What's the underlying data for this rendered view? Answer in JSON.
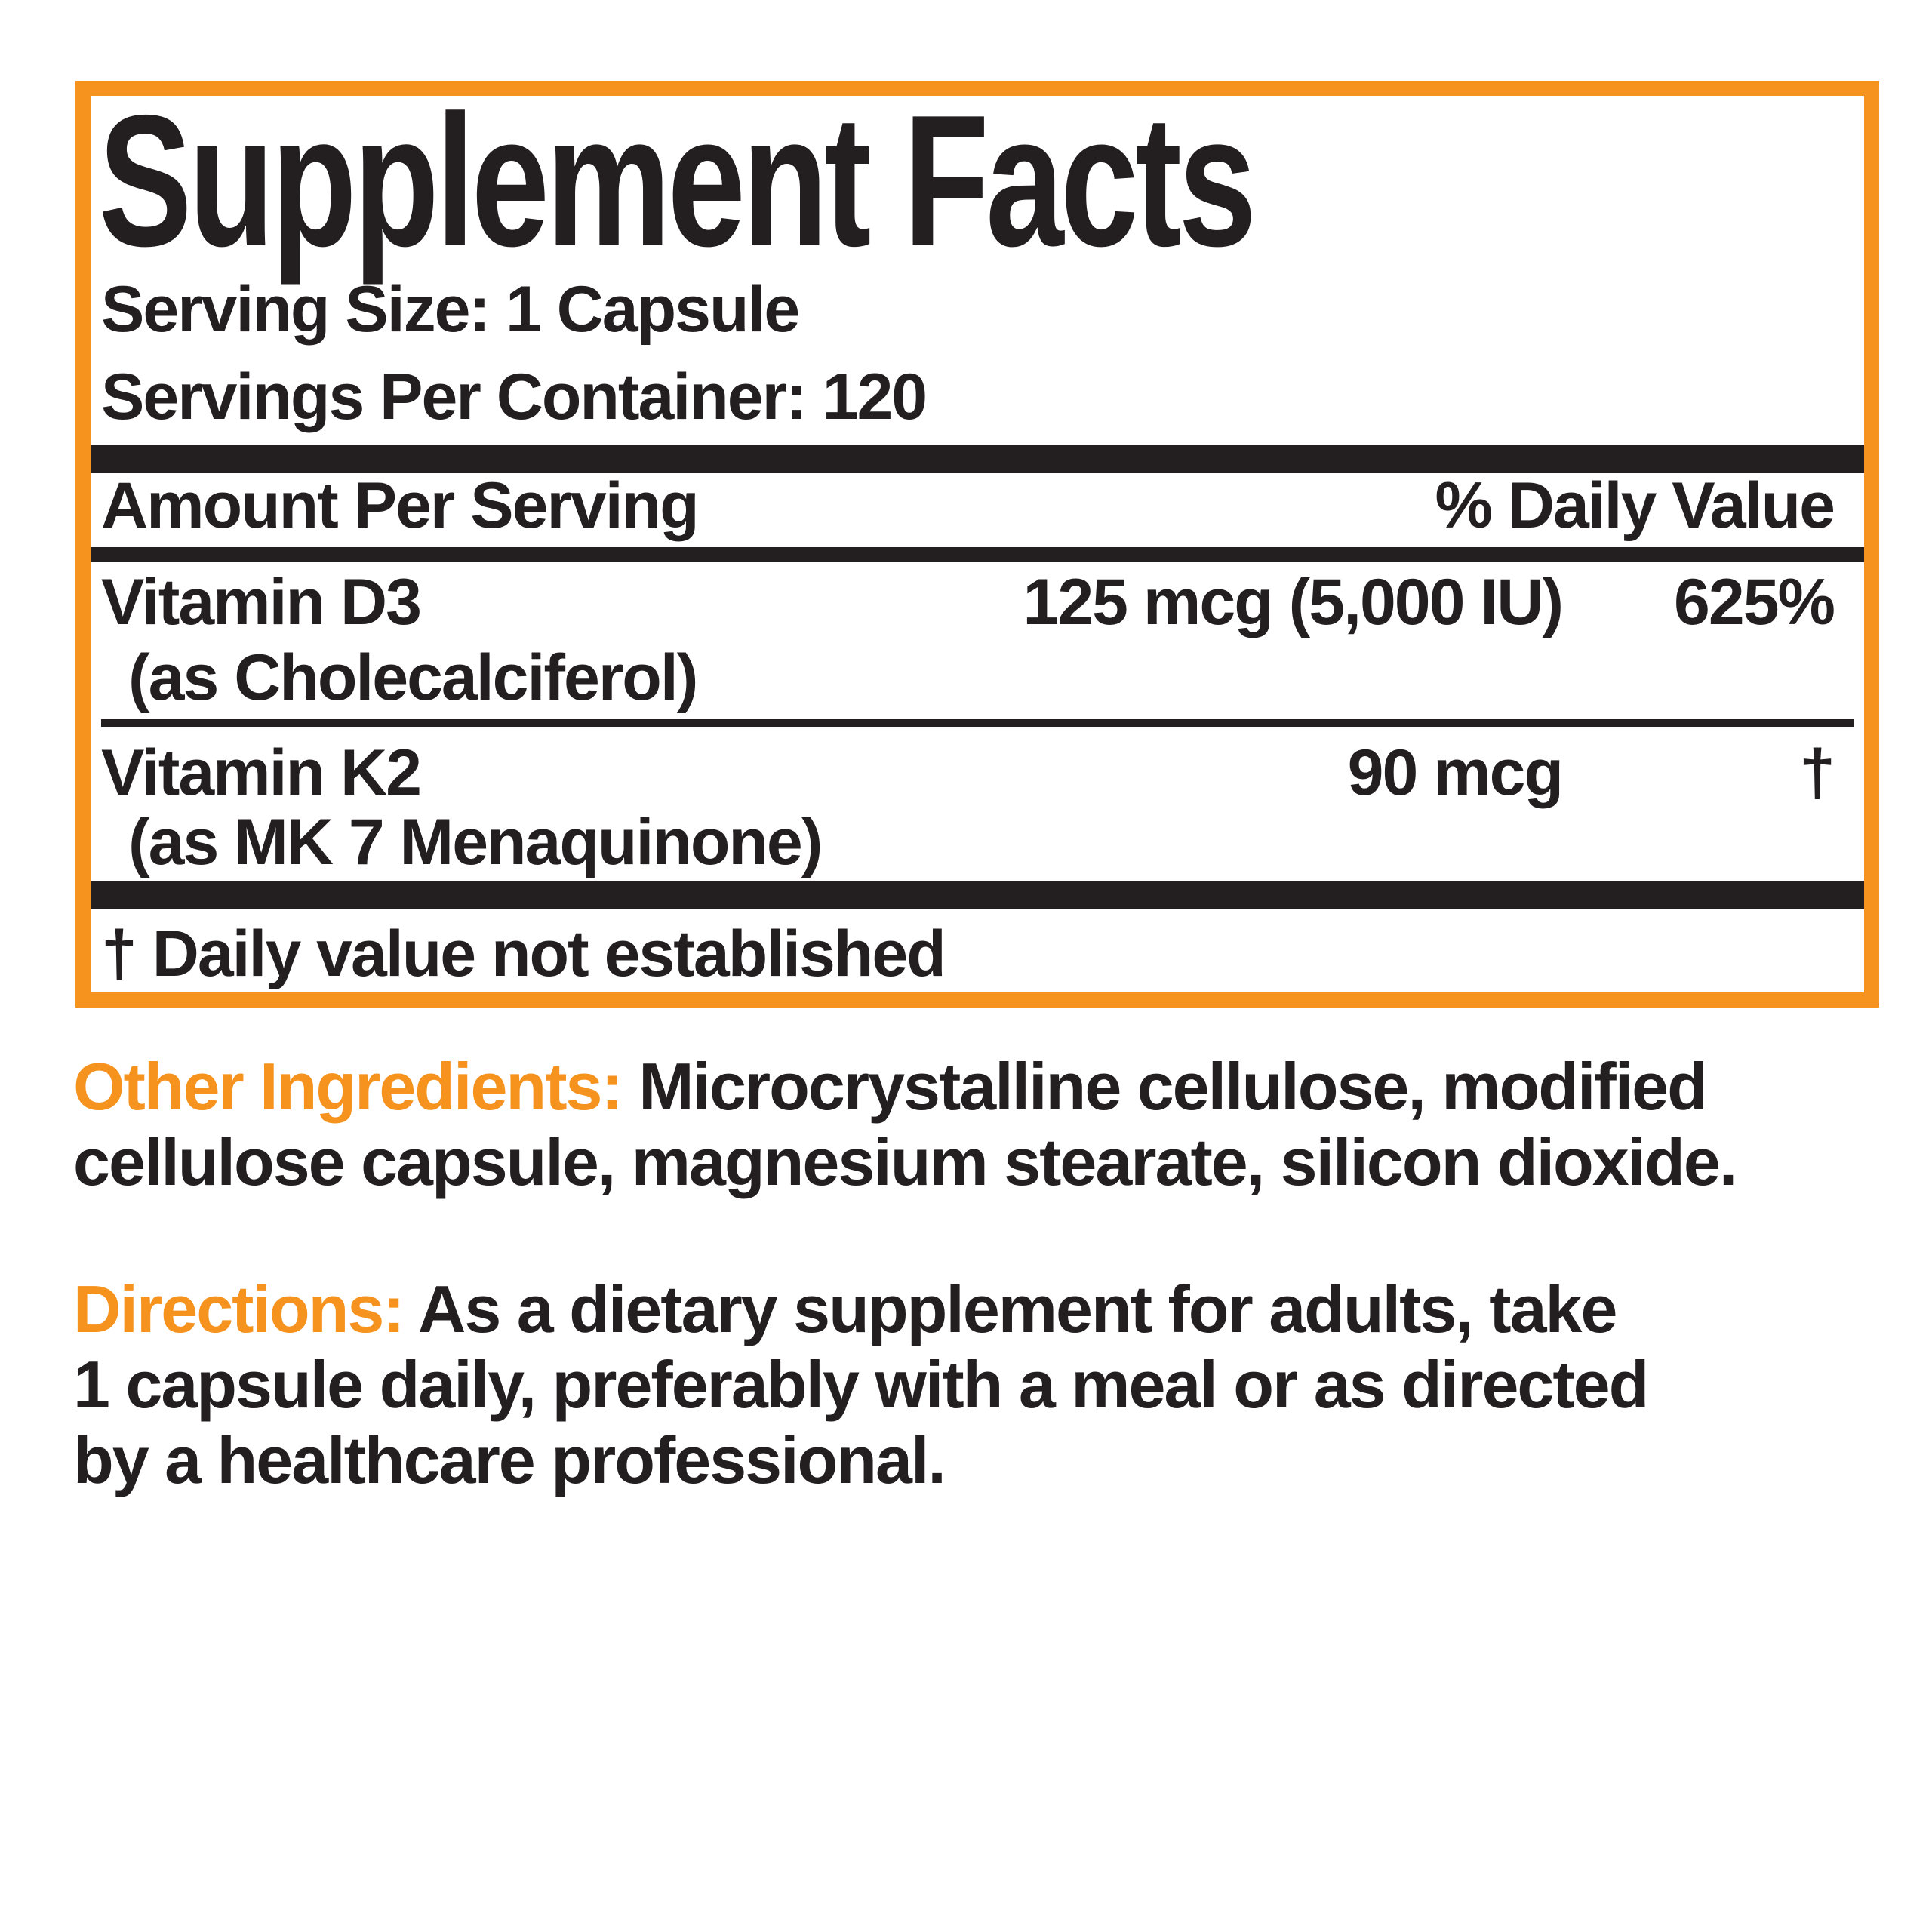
{
  "panel": {
    "title": "Supplement Facts",
    "serving_size": "Serving Size: 1 Capsule",
    "servings_per_container": "Servings Per Container: 120",
    "header": {
      "amount_label": "Amount Per Serving",
      "daily_value_label": "% Daily Value"
    },
    "rows": [
      {
        "name": "Vitamin D3",
        "detail": "(as Cholecalciferol)",
        "amount": "125 mcg (5,000 IU)",
        "daily_value": "625%"
      },
      {
        "name": "Vitamin K2",
        "detail": "(as MK 7 Menaquinone)",
        "amount": "90 mcg",
        "daily_value": "†"
      }
    ],
    "footnote": "† Daily value not established"
  },
  "other_ingredients": {
    "label": "Other Ingredients:",
    "line1_rest": " Microcrystalline cellulose, modified",
    "line2": "cellulose capsule, magnesium stearate, silicon dioxide."
  },
  "directions": {
    "label": "Directions:",
    "line1_rest": " As a dietary supplement for adults, take",
    "line2": "1 capsule daily, preferably with a meal or as directed",
    "line3": "by a healthcare professional."
  },
  "colors": {
    "accent_orange": "#F6921E",
    "text_black": "#231F20"
  }
}
